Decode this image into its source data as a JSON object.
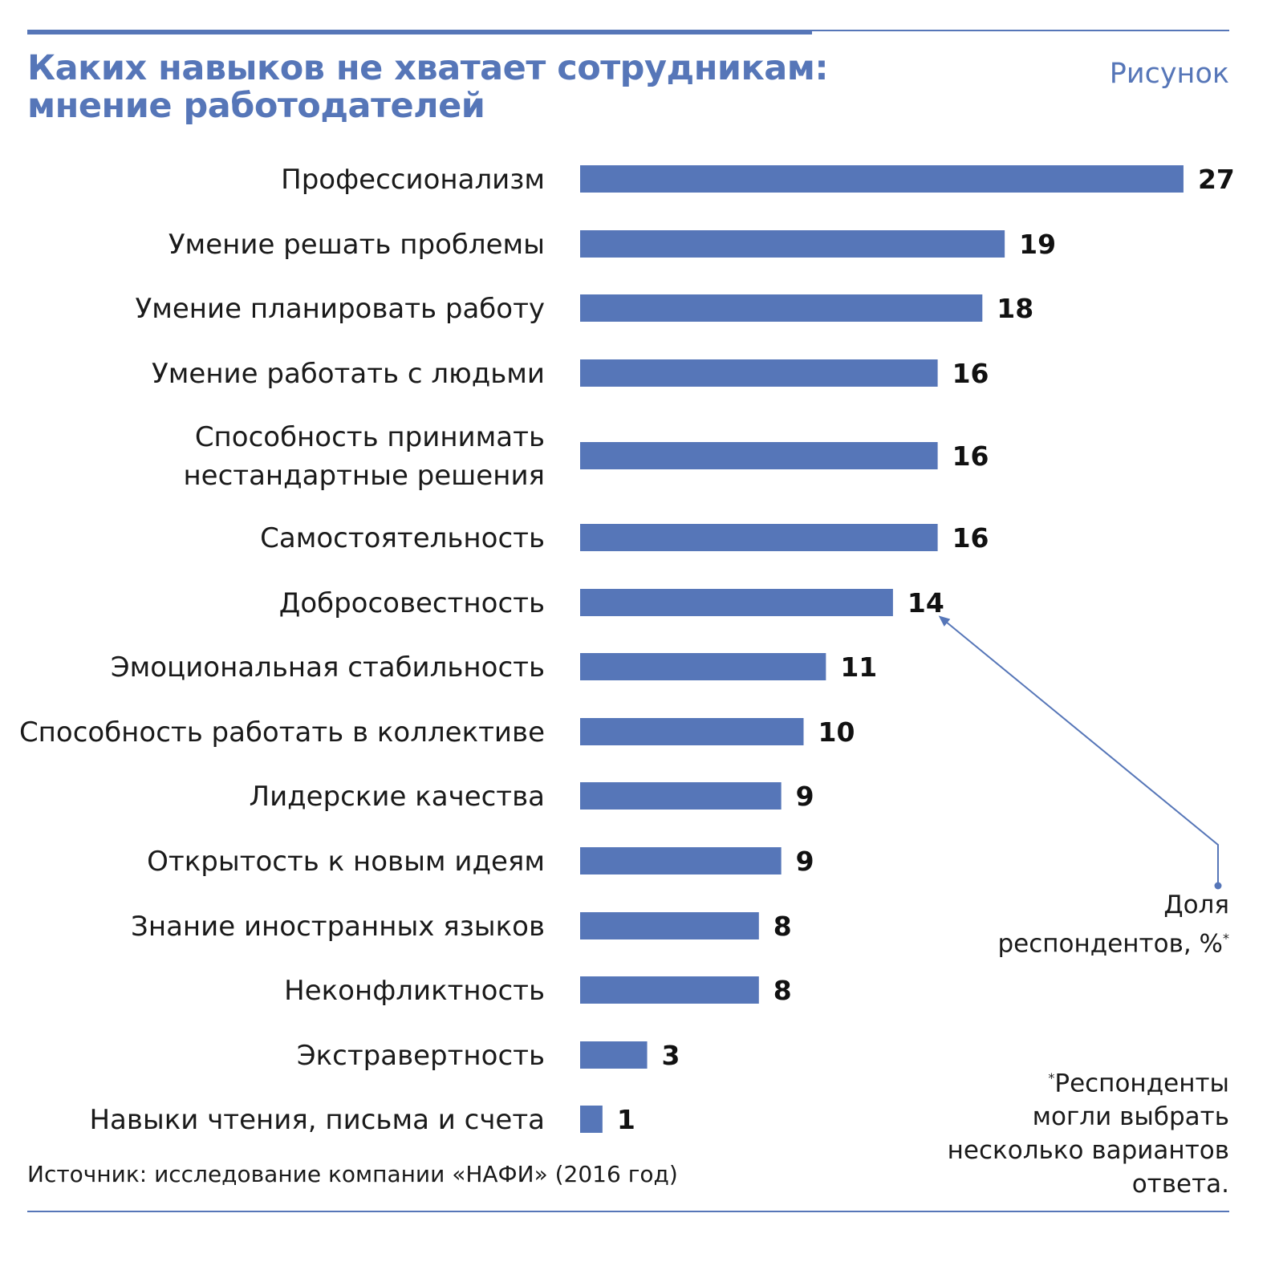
{
  "header": {
    "title": "Каких навыков не хватает сотрудникам: мнение работодателей",
    "figure_label": "Рисунок"
  },
  "notes": {
    "unit_line1": "Доля",
    "unit_line2": "респондентов, %",
    "footnote_line1": "Респонденты",
    "footnote_line2": "могли выбрать",
    "footnote_line3": "несколько вариантов",
    "footnote_line4": "ответа.",
    "source": "Источник: исследование компании «НАФИ» (2016 год)"
  },
  "colors": {
    "accent": "#5676b8",
    "bar": "#5676b8",
    "text": "#1a1a1a"
  },
  "chart_data": {
    "type": "bar",
    "orientation": "horizontal",
    "title": "Каких навыков не хватает сотрудникам: мнение работодателей",
    "xlabel": "",
    "ylabel": "",
    "grid": false,
    "xlim": [
      0,
      27
    ],
    "categories": [
      [
        "Профессионализм"
      ],
      [
        "Умение решать проблемы"
      ],
      [
        "Умение планировать работу"
      ],
      [
        "Умение работать с людьми"
      ],
      [
        "Способность принимать",
        "нестандартные решения"
      ],
      [
        "Самостоятельность"
      ],
      [
        "Добросовестность"
      ],
      [
        "Эмоциональная стабильность"
      ],
      [
        "Способность работать в коллективе"
      ],
      [
        "Лидерские качества"
      ],
      [
        "Открытость к новым идеям"
      ],
      [
        "Знание иностранных языков"
      ],
      [
        "Неконфликтность"
      ],
      [
        "Экстравертность"
      ],
      [
        "Навыки чтения, письма и счета"
      ]
    ],
    "values": [
      27,
      19,
      18,
      16,
      16,
      16,
      14,
      11,
      10,
      9,
      9,
      8,
      8,
      3,
      1
    ]
  }
}
